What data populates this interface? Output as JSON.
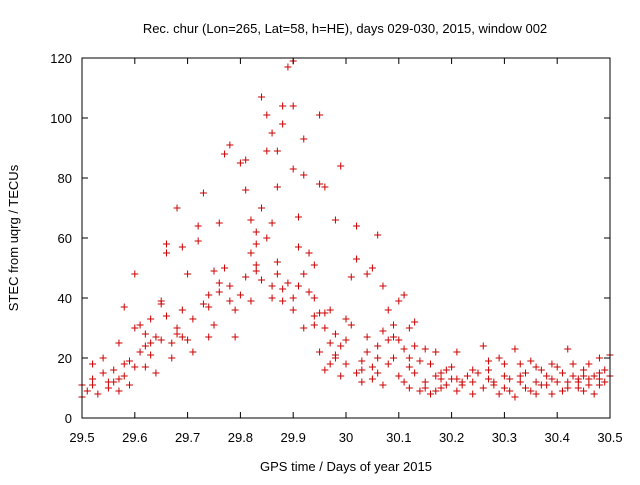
{
  "chart_data": {
    "type": "scatter",
    "title": "Rec. chur (Lon=265, Lat=58, h=HE), days 029-030, 2015, window 002",
    "xlabel": "GPS time / Days of year 2015",
    "ylabel": "STEC from uqrg / TECUs",
    "xlim": [
      29.5,
      30.5
    ],
    "ylim": [
      0,
      120
    ],
    "x_ticks": [
      "29.5",
      "29.6",
      "29.7",
      "29.8",
      "29.9",
      "30",
      "30.1",
      "30.2",
      "30.3",
      "30.4",
      "30.5"
    ],
    "y_ticks": [
      "0",
      "20",
      "40",
      "60",
      "80",
      "100",
      "120"
    ],
    "grid": false,
    "legend": "none",
    "marker": "plus",
    "color": "#cc0000",
    "points": [
      [
        29.5,
        11
      ],
      [
        29.51,
        9
      ],
      [
        29.52,
        13
      ],
      [
        29.53,
        8
      ],
      [
        29.54,
        15
      ],
      [
        29.55,
        10
      ],
      [
        29.56,
        12
      ],
      [
        29.57,
        9
      ],
      [
        29.58,
        14
      ],
      [
        29.59,
        11
      ],
      [
        29.5,
        7
      ],
      [
        29.52,
        18
      ],
      [
        29.54,
        20
      ],
      [
        29.56,
        16
      ],
      [
        29.57,
        25
      ],
      [
        29.58,
        37
      ],
      [
        29.59,
        19
      ],
      [
        29.6,
        30
      ],
      [
        29.6,
        48
      ],
      [
        29.61,
        22
      ],
      [
        29.62,
        28
      ],
      [
        29.63,
        33
      ],
      [
        29.64,
        15
      ],
      [
        29.65,
        38
      ],
      [
        29.65,
        39
      ],
      [
        29.66,
        55
      ],
      [
        29.66,
        58
      ],
      [
        29.67,
        20
      ],
      [
        29.68,
        70
      ],
      [
        29.69,
        57
      ],
      [
        29.6,
        17
      ],
      [
        29.61,
        31
      ],
      [
        29.62,
        24
      ],
      [
        29.63,
        21
      ],
      [
        29.64,
        27
      ],
      [
        29.66,
        34
      ],
      [
        29.67,
        25
      ],
      [
        29.68,
        28
      ],
      [
        29.69,
        36
      ],
      [
        29.7,
        48
      ],
      [
        29.7,
        26
      ],
      [
        29.71,
        22
      ],
      [
        29.72,
        64
      ],
      [
        29.72,
        59
      ],
      [
        29.73,
        75
      ],
      [
        29.74,
        41
      ],
      [
        29.75,
        49
      ],
      [
        29.76,
        65
      ],
      [
        29.77,
        88
      ],
      [
        29.78,
        91
      ],
      [
        29.74,
        37
      ],
      [
        29.75,
        31
      ],
      [
        29.76,
        45
      ],
      [
        29.77,
        50
      ],
      [
        29.78,
        39
      ],
      [
        29.79,
        27
      ],
      [
        29.8,
        85
      ],
      [
        29.81,
        76
      ],
      [
        29.81,
        86
      ],
      [
        29.82,
        66
      ],
      [
        29.8,
        41
      ],
      [
        29.81,
        47
      ],
      [
        29.82,
        55
      ],
      [
        29.83,
        58
      ],
      [
        29.83,
        49
      ],
      [
        29.84,
        107
      ],
      [
        29.85,
        101
      ],
      [
        29.85,
        89
      ],
      [
        29.86,
        95
      ],
      [
        29.87,
        89
      ],
      [
        29.83,
        62
      ],
      [
        29.84,
        70
      ],
      [
        29.85,
        60
      ],
      [
        29.86,
        65
      ],
      [
        29.87,
        77
      ],
      [
        29.88,
        104
      ],
      [
        29.88,
        98
      ],
      [
        29.89,
        117
      ],
      [
        29.9,
        119
      ],
      [
        29.9,
        104
      ],
      [
        29.86,
        44
      ],
      [
        29.87,
        52
      ],
      [
        29.88,
        39
      ],
      [
        29.89,
        45
      ],
      [
        29.9,
        83
      ],
      [
        29.91,
        67
      ],
      [
        29.92,
        93
      ],
      [
        29.92,
        81
      ],
      [
        29.93,
        55
      ],
      [
        29.94,
        51
      ],
      [
        29.9,
        36
      ],
      [
        29.91,
        57
      ],
      [
        29.92,
        48
      ],
      [
        29.93,
        42
      ],
      [
        29.94,
        40
      ],
      [
        29.95,
        101
      ],
      [
        29.95,
        78
      ],
      [
        29.96,
        77
      ],
      [
        29.97,
        36
      ],
      [
        29.98,
        66
      ],
      [
        29.94,
        31
      ],
      [
        29.95,
        22
      ],
      [
        29.96,
        35
      ],
      [
        29.97,
        18
      ],
      [
        29.98,
        28
      ],
      [
        29.99,
        84
      ],
      [
        30.0,
        33
      ],
      [
        30.01,
        47
      ],
      [
        30.02,
        64
      ],
      [
        30.02,
        53
      ],
      [
        29.96,
        16
      ],
      [
        29.97,
        25
      ],
      [
        29.98,
        21
      ],
      [
        29.99,
        14
      ],
      [
        30.0,
        26
      ],
      [
        30.01,
        31
      ],
      [
        30.03,
        19
      ],
      [
        30.04,
        48
      ],
      [
        30.05,
        50
      ],
      [
        30.06,
        61
      ],
      [
        30.02,
        15
      ],
      [
        30.03,
        12
      ],
      [
        30.04,
        22
      ],
      [
        30.05,
        17
      ],
      [
        30.06,
        24
      ],
      [
        30.07,
        44
      ],
      [
        30.07,
        29
      ],
      [
        30.08,
        36
      ],
      [
        30.09,
        31
      ],
      [
        30.1,
        39
      ],
      [
        30.05,
        13
      ],
      [
        30.06,
        15
      ],
      [
        30.07,
        11
      ],
      [
        30.08,
        18
      ],
      [
        30.09,
        20
      ],
      [
        30.1,
        26
      ],
      [
        30.11,
        41
      ],
      [
        30.11,
        23
      ],
      [
        30.12,
        30
      ],
      [
        30.13,
        32
      ],
      [
        30.1,
        14
      ],
      [
        30.11,
        12
      ],
      [
        30.12,
        17
      ],
      [
        30.13,
        15
      ],
      [
        30.14,
        19
      ],
      [
        30.15,
        23
      ],
      [
        30.16,
        18
      ],
      [
        30.17,
        22
      ],
      [
        30.18,
        13
      ],
      [
        30.19,
        11
      ],
      [
        30.12,
        10
      ],
      [
        30.14,
        9
      ],
      [
        30.15,
        12
      ],
      [
        30.16,
        8
      ],
      [
        30.17,
        14
      ],
      [
        30.18,
        10
      ],
      [
        30.19,
        16
      ],
      [
        30.2,
        13
      ],
      [
        30.21,
        9
      ],
      [
        30.22,
        12
      ],
      [
        30.2,
        17
      ],
      [
        30.21,
        22
      ],
      [
        30.22,
        11
      ],
      [
        30.23,
        14
      ],
      [
        30.24,
        8
      ],
      [
        30.25,
        15
      ],
      [
        30.26,
        10
      ],
      [
        30.27,
        19
      ],
      [
        30.28,
        12
      ],
      [
        30.29,
        8
      ],
      [
        30.24,
        12
      ],
      [
        30.26,
        24
      ],
      [
        30.27,
        16
      ],
      [
        30.28,
        11
      ],
      [
        30.29,
        20
      ],
      [
        30.3,
        14
      ],
      [
        30.31,
        9
      ],
      [
        30.32,
        23
      ],
      [
        30.33,
        18
      ],
      [
        30.34,
        10
      ],
      [
        30.3,
        10
      ],
      [
        30.31,
        13
      ],
      [
        30.32,
        7
      ],
      [
        30.33,
        12
      ],
      [
        30.34,
        15
      ],
      [
        30.35,
        9
      ],
      [
        30.36,
        17
      ],
      [
        30.37,
        11
      ],
      [
        30.38,
        14
      ],
      [
        30.39,
        8
      ],
      [
        30.35,
        19
      ],
      [
        30.36,
        8
      ],
      [
        30.37,
        16
      ],
      [
        30.38,
        11
      ],
      [
        30.39,
        13
      ],
      [
        30.4,
        17
      ],
      [
        30.41,
        9
      ],
      [
        30.42,
        23
      ],
      [
        30.43,
        14
      ],
      [
        30.44,
        10
      ],
      [
        30.4,
        12
      ],
      [
        30.41,
        15
      ],
      [
        30.42,
        10
      ],
      [
        30.43,
        18
      ],
      [
        30.44,
        12
      ],
      [
        30.45,
        16
      ],
      [
        30.46,
        11
      ],
      [
        30.47,
        14
      ],
      [
        30.48,
        20
      ],
      [
        30.49,
        16
      ],
      [
        30.45,
        9
      ],
      [
        30.46,
        13
      ],
      [
        30.47,
        8
      ],
      [
        30.48,
        15
      ],
      [
        30.49,
        12
      ],
      [
        30.5,
        21
      ],
      [
        30.5,
        14
      ],
      [
        30.48,
        11
      ],
      [
        30.46,
        18
      ],
      [
        30.44,
        13
      ],
      [
        29.55,
        12
      ],
      [
        29.58,
        18
      ],
      [
        29.62,
        17
      ],
      [
        29.65,
        26
      ],
      [
        29.68,
        30
      ],
      [
        29.71,
        33
      ],
      [
        29.74,
        27
      ],
      [
        29.76,
        42
      ],
      [
        29.79,
        36
      ],
      [
        29.82,
        39
      ],
      [
        29.84,
        46
      ],
      [
        29.86,
        40
      ],
      [
        29.88,
        43
      ],
      [
        29.9,
        40
      ],
      [
        29.92,
        30
      ],
      [
        29.94,
        34
      ],
      [
        29.96,
        30
      ],
      [
        29.98,
        20
      ],
      [
        30.0,
        18
      ],
      [
        30.03,
        16
      ],
      [
        30.06,
        20
      ],
      [
        30.09,
        27
      ],
      [
        30.12,
        20
      ],
      [
        30.15,
        10
      ],
      [
        30.18,
        15
      ],
      [
        30.21,
        13
      ],
      [
        30.24,
        16
      ],
      [
        30.27,
        13
      ],
      [
        30.3,
        18
      ],
      [
        30.33,
        14
      ],
      [
        30.36,
        12
      ],
      [
        30.39,
        18
      ],
      [
        30.42,
        12
      ],
      [
        30.45,
        14
      ],
      [
        30.48,
        13
      ],
      [
        29.52,
        11
      ],
      [
        29.57,
        13
      ],
      [
        29.63,
        25
      ],
      [
        29.69,
        27
      ],
      [
        29.73,
        38
      ],
      [
        29.78,
        44
      ],
      [
        29.83,
        51
      ],
      [
        29.87,
        48
      ],
      [
        29.91,
        44
      ],
      [
        29.95,
        35
      ],
      [
        29.99,
        24
      ],
      [
        30.04,
        27
      ],
      [
        30.08,
        26
      ],
      [
        30.13,
        24
      ],
      [
        30.17,
        9
      ]
    ]
  }
}
